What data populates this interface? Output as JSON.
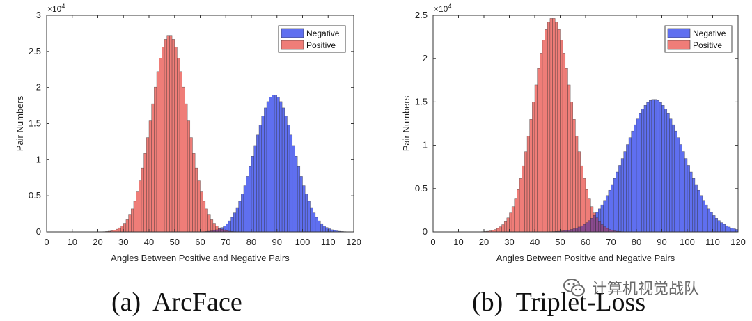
{
  "colors": {
    "negative": "#5f6ff0",
    "positive": "#ef7d78",
    "overlap": "#8a4a8e",
    "axis": "#333333",
    "text": "#222222"
  },
  "captions": {
    "a": "(a)  ArcFace",
    "b": "(b)  Triplet-Loss"
  },
  "watermark": {
    "icon": "wechat-icon",
    "text": "计算机视觉战队"
  },
  "chart_data": [
    {
      "type": "bar",
      "id": "arcface",
      "title": "",
      "xlabel": "Angles Between Positive and Negative Pairs",
      "ylabel": "Pair Numbers",
      "exponent_label": "×10",
      "exponent_power": "4",
      "xlim": [
        0,
        120
      ],
      "ylim": [
        0,
        3
      ],
      "xticks": [
        0,
        10,
        20,
        30,
        40,
        50,
        60,
        70,
        80,
        90,
        100,
        110,
        120
      ],
      "xtick_labels": [
        "0",
        "10",
        "20",
        "30",
        "40",
        "50",
        "60",
        "70",
        "80",
        "90",
        "100",
        "110",
        "120"
      ],
      "yticks": [
        0,
        0.5,
        1,
        1.5,
        2,
        2.5,
        3
      ],
      "ytick_labels": [
        "0",
        "0.5",
        "1",
        "1.5",
        "2",
        "2.5",
        "3"
      ],
      "bin_width": 1,
      "legend_position": "top-right",
      "series": [
        {
          "name": "Negative",
          "color": "#5f6ff0",
          "distribution": "normal",
          "peak": 1.9,
          "mean": 89,
          "std": 7.8,
          "min_x": 55,
          "max_x": 120
        },
        {
          "name": "Positive",
          "color": "#ef7d78",
          "distribution": "normal",
          "peak": 2.73,
          "mean": 48,
          "std": 7.0,
          "min_x": 10,
          "max_x": 85
        }
      ]
    },
    {
      "type": "bar",
      "id": "triplet",
      "title": "",
      "xlabel": "Angles Between Positive and Negative Pairs",
      "ylabel": "Pair Numbers",
      "exponent_label": "×10",
      "exponent_power": "4",
      "xlim": [
        0,
        120
      ],
      "ylim": [
        0,
        2.5
      ],
      "xticks": [
        0,
        10,
        20,
        30,
        40,
        50,
        60,
        70,
        80,
        90,
        100,
        110,
        120
      ],
      "xtick_labels": [
        "0",
        "10",
        "20",
        "30",
        "40",
        "50",
        "60",
        "70",
        "80",
        "90",
        "100",
        "110",
        "120"
      ],
      "yticks": [
        0,
        0.5,
        1,
        1.5,
        2,
        2.5
      ],
      "ytick_labels": [
        "0",
        "0.5",
        "1",
        "1.5",
        "2",
        "2.5"
      ],
      "bin_width": 1,
      "legend_position": "top-right",
      "series": [
        {
          "name": "Negative",
          "color": "#5f6ff0",
          "distribution": "normal",
          "peak": 1.53,
          "mean": 87,
          "std": 11.5,
          "min_x": 45,
          "max_x": 120
        },
        {
          "name": "Positive",
          "color": "#ef7d78",
          "distribution": "normal",
          "peak": 2.47,
          "mean": 47,
          "std": 7.5,
          "min_x": 10,
          "max_x": 85
        }
      ]
    }
  ]
}
